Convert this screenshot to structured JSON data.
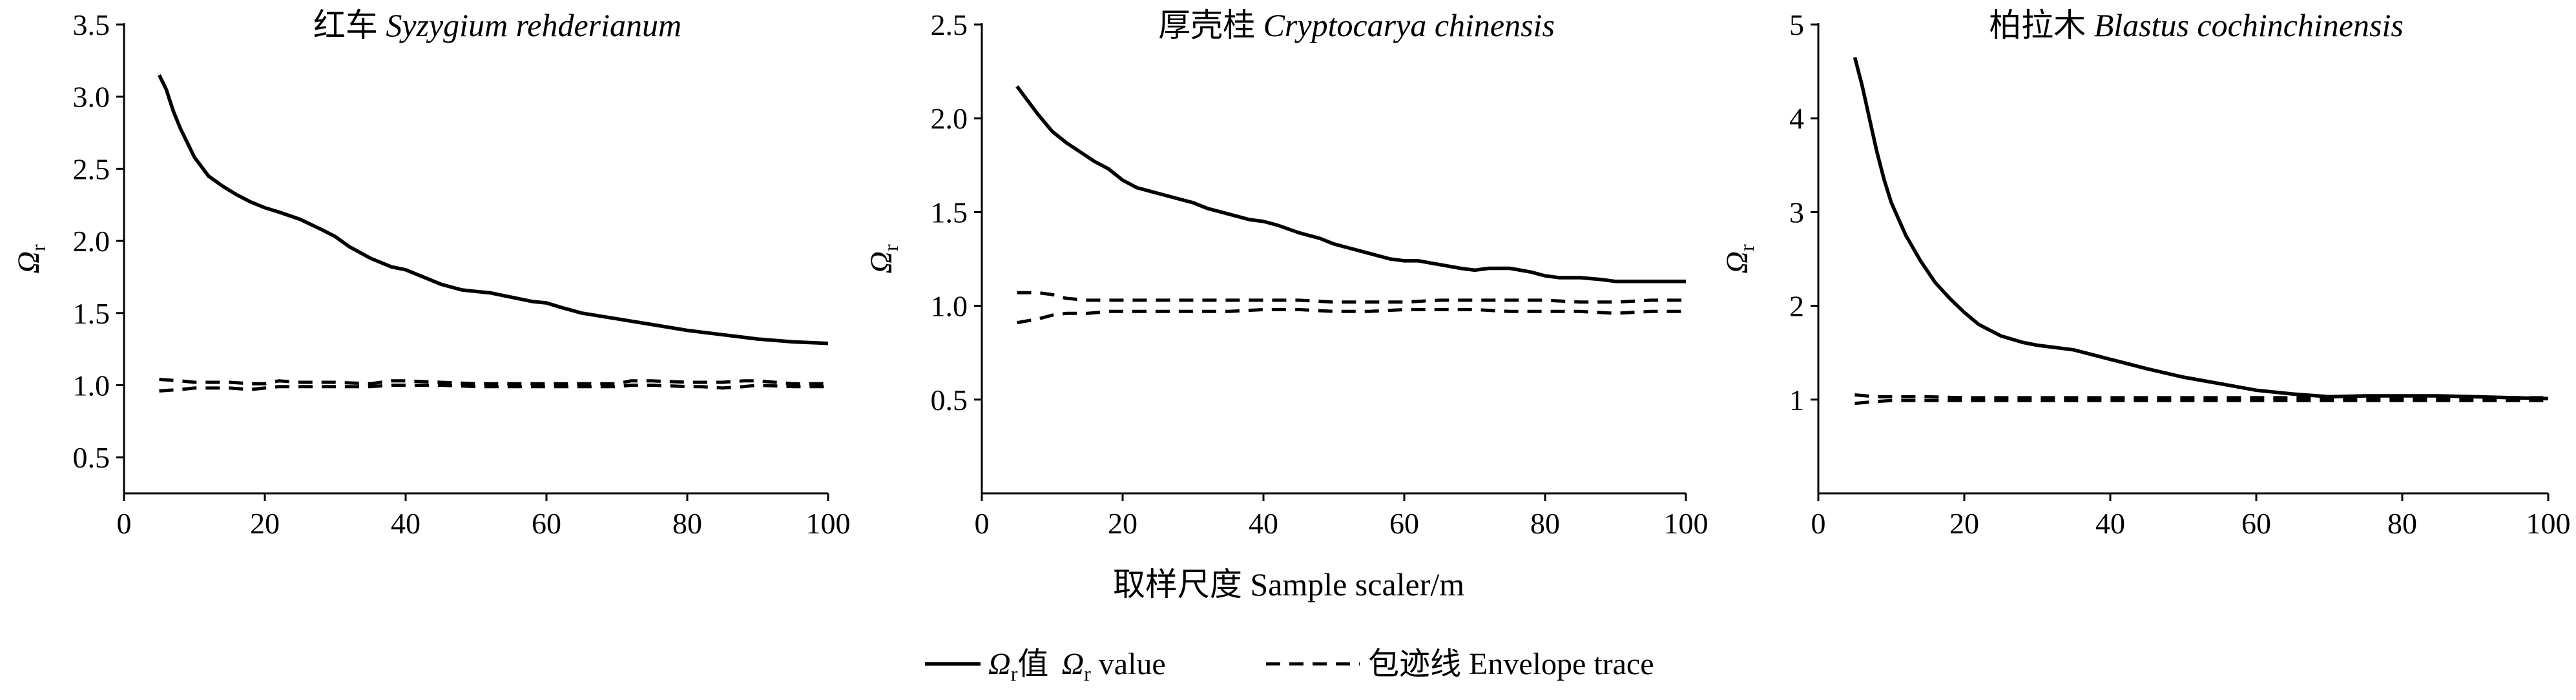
{
  "figure": {
    "xlabel": "取样尺度  Sample scaler/m",
    "ylabel_symbol": "Ω",
    "ylabel_subscript": "r",
    "legend": {
      "omega": {
        "symbol": "Ω",
        "sub": "r",
        "zh": "值",
        "en_sub": "r",
        "en": " value"
      },
      "envelope": {
        "label": "包迹线  Envelope trace"
      }
    }
  },
  "chart_data": [
    {
      "type": "line",
      "title_zh": "红车",
      "title_latin": "Syzygium rehderianum",
      "xlim": [
        0,
        100
      ],
      "ylim": [
        0.25,
        3.5
      ],
      "xticks": [
        "0",
        "20",
        "40",
        "60",
        "80",
        "100"
      ],
      "xtick_values": [
        0,
        20,
        40,
        60,
        80,
        100
      ],
      "yticks": [
        "0.5",
        "1.0",
        "1.5",
        "2.0",
        "2.5",
        "3.0",
        "3.5"
      ],
      "ytick_values": [
        0.5,
        1.0,
        1.5,
        2.0,
        2.5,
        3.0,
        3.5
      ],
      "series": [
        {
          "role": "omega",
          "x": [
            5,
            6,
            7,
            8,
            10,
            12,
            14,
            16,
            18,
            20,
            22,
            25,
            28,
            30,
            32,
            35,
            38,
            40,
            42,
            45,
            48,
            50,
            52,
            55,
            58,
            60,
            62,
            65,
            70,
            75,
            80,
            85,
            90,
            95,
            100
          ],
          "y": [
            3.15,
            3.05,
            2.9,
            2.78,
            2.58,
            2.45,
            2.38,
            2.32,
            2.27,
            2.23,
            2.2,
            2.15,
            2.08,
            2.03,
            1.96,
            1.88,
            1.82,
            1.8,
            1.76,
            1.7,
            1.66,
            1.65,
            1.64,
            1.61,
            1.58,
            1.57,
            1.54,
            1.5,
            1.46,
            1.42,
            1.38,
            1.35,
            1.32,
            1.3,
            1.29
          ]
        },
        {
          "role": "envelope_upper",
          "x": [
            5,
            8,
            10,
            15,
            18,
            20,
            22,
            25,
            30,
            35,
            38,
            40,
            45,
            50,
            55,
            60,
            65,
            70,
            72,
            75,
            80,
            82,
            85,
            88,
            90,
            95,
            100
          ],
          "y": [
            1.04,
            1.03,
            1.02,
            1.02,
            1.01,
            1.01,
            1.03,
            1.02,
            1.02,
            1.01,
            1.03,
            1.03,
            1.02,
            1.01,
            1.01,
            1.01,
            1.01,
            1.01,
            1.03,
            1.03,
            1.02,
            1.02,
            1.02,
            1.03,
            1.03,
            1.01,
            1.01
          ]
        },
        {
          "role": "envelope_lower",
          "x": [
            5,
            8,
            10,
            15,
            18,
            20,
            22,
            25,
            30,
            35,
            38,
            40,
            45,
            50,
            55,
            60,
            65,
            70,
            72,
            75,
            80,
            82,
            85,
            88,
            90,
            95,
            100
          ],
          "y": [
            0.96,
            0.97,
            0.98,
            0.98,
            0.97,
            0.98,
            0.99,
            0.99,
            0.99,
            0.99,
            1.0,
            1.0,
            1.0,
            0.99,
            0.99,
            0.99,
            0.99,
            0.99,
            1.0,
            1.0,
            0.99,
            0.99,
            0.98,
            0.99,
            1.0,
            0.99,
            0.99
          ]
        }
      ]
    },
    {
      "type": "line",
      "title_zh": "厚壳桂",
      "title_latin": "Cryptocarya chinensis",
      "xlim": [
        0,
        100
      ],
      "ylim": [
        0.0,
        2.5
      ],
      "xticks": [
        "0",
        "20",
        "40",
        "60",
        "80",
        "100"
      ],
      "xtick_values": [
        0,
        20,
        40,
        60,
        80,
        100
      ],
      "yticks": [
        "0.5",
        "1.0",
        "1.5",
        "2.0",
        "2.5"
      ],
      "ytick_values": [
        0.5,
        1.0,
        1.5,
        2.0,
        2.5
      ],
      "series": [
        {
          "role": "omega",
          "x": [
            5,
            6,
            8,
            10,
            12,
            14,
            16,
            18,
            20,
            22,
            25,
            28,
            30,
            32,
            35,
            38,
            40,
            42,
            45,
            48,
            50,
            52,
            55,
            58,
            60,
            62,
            65,
            68,
            70,
            72,
            75,
            78,
            80,
            82,
            85,
            88,
            90,
            95,
            100
          ],
          "y": [
            2.17,
            2.12,
            2.02,
            1.93,
            1.87,
            1.82,
            1.77,
            1.73,
            1.67,
            1.63,
            1.6,
            1.57,
            1.55,
            1.52,
            1.49,
            1.46,
            1.45,
            1.43,
            1.39,
            1.36,
            1.33,
            1.31,
            1.28,
            1.25,
            1.24,
            1.24,
            1.22,
            1.2,
            1.19,
            1.2,
            1.2,
            1.18,
            1.16,
            1.15,
            1.15,
            1.14,
            1.13,
            1.13,
            1.13
          ]
        },
        {
          "role": "envelope_upper",
          "x": [
            5,
            8,
            10,
            12,
            15,
            18,
            20,
            25,
            30,
            35,
            40,
            45,
            50,
            55,
            60,
            65,
            70,
            75,
            80,
            85,
            90,
            95,
            100
          ],
          "y": [
            1.07,
            1.07,
            1.06,
            1.04,
            1.03,
            1.03,
            1.03,
            1.03,
            1.03,
            1.03,
            1.03,
            1.03,
            1.02,
            1.02,
            1.02,
            1.03,
            1.03,
            1.03,
            1.03,
            1.02,
            1.02,
            1.03,
            1.03
          ]
        },
        {
          "role": "envelope_lower",
          "x": [
            5,
            8,
            10,
            12,
            15,
            18,
            20,
            25,
            30,
            35,
            40,
            45,
            50,
            55,
            60,
            65,
            70,
            75,
            80,
            85,
            90,
            95,
            100
          ],
          "y": [
            0.91,
            0.93,
            0.95,
            0.96,
            0.96,
            0.97,
            0.97,
            0.97,
            0.97,
            0.97,
            0.98,
            0.98,
            0.97,
            0.97,
            0.98,
            0.98,
            0.98,
            0.97,
            0.97,
            0.97,
            0.96,
            0.97,
            0.97
          ]
        }
      ]
    },
    {
      "type": "line",
      "title_zh": "柏拉木",
      "title_latin": "Blastus cochinchinensis",
      "xlim": [
        0,
        100
      ],
      "ylim": [
        0.0,
        5.0
      ],
      "xticks": [
        "0",
        "20",
        "40",
        "60",
        "80",
        "100"
      ],
      "xtick_values": [
        0,
        20,
        40,
        60,
        80,
        100
      ],
      "yticks": [
        "1",
        "2",
        "3",
        "4",
        "5"
      ],
      "ytick_values": [
        1,
        2,
        3,
        4,
        5
      ],
      "series": [
        {
          "role": "omega",
          "x": [
            5,
            6,
            7,
            8,
            9,
            10,
            12,
            14,
            16,
            18,
            20,
            22,
            25,
            28,
            30,
            32,
            35,
            40,
            45,
            50,
            55,
            60,
            65,
            70,
            75,
            80,
            85,
            90,
            95,
            100
          ],
          "y": [
            4.65,
            4.35,
            4.0,
            3.65,
            3.35,
            3.1,
            2.75,
            2.48,
            2.25,
            2.08,
            1.93,
            1.8,
            1.68,
            1.61,
            1.58,
            1.56,
            1.53,
            1.43,
            1.33,
            1.24,
            1.17,
            1.1,
            1.06,
            1.03,
            1.04,
            1.04,
            1.04,
            1.03,
            1.02,
            1.01
          ]
        },
        {
          "role": "envelope_upper",
          "x": [
            5,
            8,
            10,
            15,
            20,
            30,
            40,
            50,
            60,
            70,
            80,
            90,
            100
          ],
          "y": [
            1.05,
            1.03,
            1.03,
            1.03,
            1.02,
            1.02,
            1.02,
            1.02,
            1.02,
            1.02,
            1.02,
            1.02,
            1.02
          ]
        },
        {
          "role": "envelope_lower",
          "x": [
            5,
            8,
            10,
            15,
            20,
            30,
            40,
            50,
            60,
            70,
            80,
            90,
            100
          ],
          "y": [
            0.96,
            0.98,
            0.99,
            0.99,
            0.99,
            0.99,
            0.99,
            0.99,
            0.99,
            0.99,
            0.99,
            0.99,
            0.99
          ]
        }
      ]
    }
  ]
}
